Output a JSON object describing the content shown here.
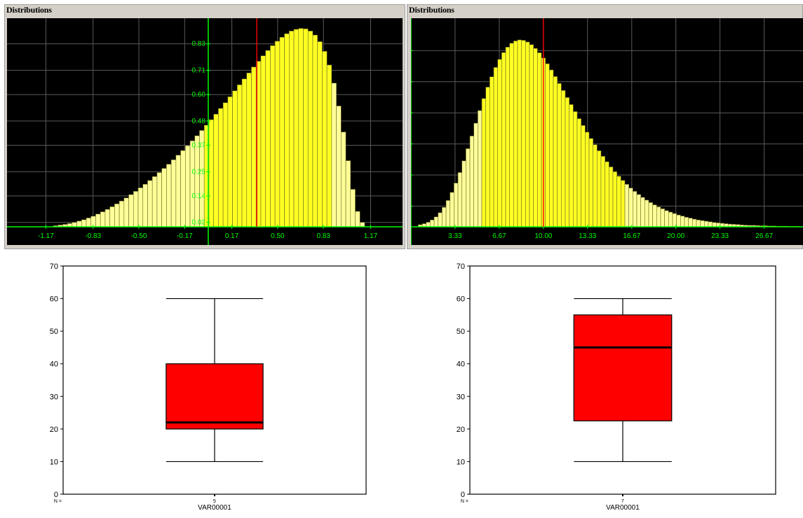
{
  "chart_data": [
    {
      "type": "bar",
      "title": "Distributions",
      "x_tick_labels": [
        "-1.17",
        "-0.83",
        "-0.50",
        "-0.17",
        "0.17",
        "0.50",
        "0.83",
        "1.17"
      ],
      "x_ticks": [
        -1.17,
        -0.83,
        -0.5,
        -0.17,
        0.17,
        0.5,
        0.83,
        1.17
      ],
      "y_tick_labels": [
        "0.02",
        "0.14",
        "0.25",
        "0.37",
        "0.48",
        "0.60",
        "0.71",
        "0.83"
      ],
      "y_ticks": [
        0.02,
        0.14,
        0.25,
        0.37,
        0.48,
        0.6,
        0.71,
        0.83
      ],
      "xlim": [
        -1.45,
        1.4
      ],
      "ylim": [
        0,
        0.94
      ],
      "marker_x": 0.35,
      "highlight_range": [
        -0.02,
        0.89
      ],
      "grid": true,
      "colors": {
        "background": "#000000",
        "bar_light": "#ffff99",
        "bar_dark": "#ffff22",
        "axis": "#00ff00",
        "marker": "#ff0000",
        "grid": "#5a5a5a"
      },
      "bins": {
        "x": [
          -1.1,
          -1.066,
          -1.032,
          -0.998,
          -0.964,
          -0.93,
          -0.896,
          -0.862,
          -0.828,
          -0.794,
          -0.76,
          -0.726,
          -0.692,
          -0.658,
          -0.624,
          -0.59,
          -0.556,
          -0.522,
          -0.488,
          -0.454,
          -0.42,
          -0.386,
          -0.352,
          -0.318,
          -0.284,
          -0.25,
          -0.216,
          -0.182,
          -0.148,
          -0.114,
          -0.08,
          -0.046,
          -0.012,
          0.022,
          0.056,
          0.09,
          0.124,
          0.158,
          0.192,
          0.226,
          0.26,
          0.294,
          0.328,
          0.362,
          0.396,
          0.43,
          0.464,
          0.498,
          0.532,
          0.566,
          0.6,
          0.634,
          0.668,
          0.702,
          0.736,
          0.77,
          0.804,
          0.838,
          0.872,
          0.906,
          0.94,
          0.974,
          1.008,
          1.042,
          1.076,
          1.11
        ],
        "y": [
          0.005,
          0.008,
          0.011,
          0.015,
          0.02,
          0.026,
          0.032,
          0.04,
          0.048,
          0.058,
          0.068,
          0.079,
          0.091,
          0.104,
          0.117,
          0.131,
          0.146,
          0.161,
          0.177,
          0.193,
          0.21,
          0.228,
          0.246,
          0.265,
          0.284,
          0.304,
          0.325,
          0.346,
          0.368,
          0.39,
          0.413,
          0.437,
          0.461,
          0.486,
          0.511,
          0.537,
          0.563,
          0.59,
          0.617,
          0.644,
          0.671,
          0.698,
          0.725,
          0.751,
          0.776,
          0.8,
          0.822,
          0.842,
          0.86,
          0.876,
          0.888,
          0.896,
          0.9,
          0.898,
          0.888,
          0.87,
          0.84,
          0.796,
          0.734,
          0.652,
          0.548,
          0.43,
          0.3,
          0.17,
          0.07,
          0.02
        ]
      }
    },
    {
      "type": "bar",
      "title": "Distributions",
      "x_tick_labels": [
        "3.33",
        "6.67",
        "10.00",
        "13.33",
        "16.67",
        "20.00",
        "23.33",
        "26.67"
      ],
      "x_ticks": [
        3.33,
        6.67,
        10.0,
        13.33,
        16.67,
        20.0,
        23.33,
        26.67
      ],
      "xlim": [
        0,
        29.6
      ],
      "ylim": [
        0,
        1
      ],
      "marker_x": 10.0,
      "highlight_range": [
        5.4,
        16.1
      ],
      "grid": true,
      "colors": {
        "background": "#000000",
        "bar_light": "#ffff99",
        "bar_dark": "#ffff22",
        "axis": "#00ff00",
        "marker": "#ff0000",
        "grid": "#5a5a5a"
      },
      "bins": {
        "x": [
          0.7,
          1.0,
          1.3,
          1.6,
          1.9,
          2.2,
          2.5,
          2.8,
          3.1,
          3.4,
          3.7,
          4.0,
          4.3,
          4.6,
          4.9,
          5.2,
          5.5,
          5.8,
          6.1,
          6.4,
          6.7,
          7.0,
          7.3,
          7.6,
          7.9,
          8.2,
          8.5,
          8.8,
          9.1,
          9.4,
          9.7,
          10.0,
          10.3,
          10.6,
          10.9,
          11.2,
          11.5,
          11.8,
          12.1,
          12.4,
          12.7,
          13.0,
          13.3,
          13.6,
          13.9,
          14.2,
          14.5,
          14.8,
          15.1,
          15.4,
          15.7,
          16.0,
          16.3,
          16.6,
          16.9,
          17.2,
          17.5,
          17.8,
          18.1,
          18.4,
          18.7,
          19.0,
          19.3,
          19.6,
          19.9,
          20.2,
          20.5,
          20.8,
          21.1,
          21.4,
          21.7,
          22.0,
          22.3,
          22.6,
          22.9,
          23.2,
          23.5,
          23.8,
          24.1,
          24.4,
          24.7,
          25.0,
          25.3,
          25.6,
          25.9,
          26.2,
          26.5,
          26.8,
          27.1,
          27.4,
          27.7,
          28.0,
          28.3,
          28.6,
          28.9,
          29.2
        ],
        "y": [
          0.01,
          0.015,
          0.022,
          0.033,
          0.048,
          0.068,
          0.094,
          0.127,
          0.166,
          0.211,
          0.262,
          0.318,
          0.377,
          0.438,
          0.5,
          0.561,
          0.619,
          0.674,
          0.724,
          0.769,
          0.808,
          0.841,
          0.867,
          0.886,
          0.897,
          0.902,
          0.9,
          0.892,
          0.879,
          0.861,
          0.84,
          0.815,
          0.787,
          0.757,
          0.725,
          0.692,
          0.658,
          0.624,
          0.59,
          0.556,
          0.522,
          0.489,
          0.457,
          0.426,
          0.396,
          0.367,
          0.34,
          0.314,
          0.289,
          0.266,
          0.244,
          0.224,
          0.205,
          0.187,
          0.171,
          0.156,
          0.142,
          0.129,
          0.117,
          0.106,
          0.096,
          0.087,
          0.078,
          0.071,
          0.064,
          0.057,
          0.052,
          0.046,
          0.042,
          0.037,
          0.033,
          0.03,
          0.027,
          0.024,
          0.021,
          0.019,
          0.017,
          0.015,
          0.013,
          0.012,
          0.011,
          0.009,
          0.008,
          0.007,
          0.007,
          0.006,
          0.005,
          0.005,
          0.004,
          0.004,
          0.003,
          0.003,
          0.003,
          0.002,
          0.002,
          0.002
        ]
      }
    },
    {
      "type": "box",
      "variable": "VAR00001",
      "n_label": "N =",
      "n": "5",
      "ylim": [
        0,
        70
      ],
      "y_ticks": [
        0,
        10,
        20,
        30,
        40,
        50,
        60,
        70
      ],
      "min": 10,
      "q1": 20,
      "median": 22,
      "q3": 40,
      "max": 60,
      "box_color": "#ff0000"
    },
    {
      "type": "box",
      "variable": "VAR00001",
      "n_label": "N =",
      "n": "7",
      "ylim": [
        0,
        70
      ],
      "y_ticks": [
        0,
        10,
        20,
        30,
        40,
        50,
        60,
        70
      ],
      "min": 10,
      "q1": 22.5,
      "median": 45,
      "q3": 55,
      "max": 60,
      "box_color": "#ff0000"
    }
  ]
}
